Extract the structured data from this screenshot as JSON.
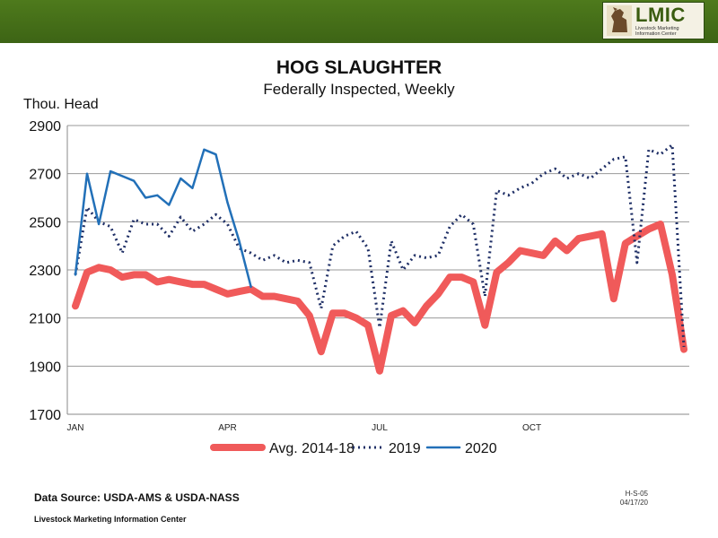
{
  "header": {
    "logo_title": "LMIC",
    "logo_subtitle": "Livestock Marketing Information Center",
    "brand_color": "#4a7419"
  },
  "chart_data": {
    "type": "line",
    "title": "HOG SLAUGHTER",
    "subtitle": "Federally Inspected, Weekly",
    "ylabel": "Thou. Head",
    "xlabel": "",
    "ylim": [
      1700,
      2900
    ],
    "yticks": [
      1700,
      1900,
      2100,
      2300,
      2500,
      2700,
      2900
    ],
    "grid": true,
    "x_week_range": [
      1,
      53
    ],
    "xticks": [
      {
        "label": "JAN",
        "week": 1
      },
      {
        "label": "APR",
        "week": 14
      },
      {
        "label": "JUL",
        "week": 27
      },
      {
        "label": "OCT",
        "week": 40
      }
    ],
    "legend_position": "bottom",
    "series": [
      {
        "name": "Avg. 2014-18",
        "color": "#f05a5a",
        "style": "thick",
        "values": [
          2150,
          2290,
          2310,
          2300,
          2270,
          2280,
          2280,
          2250,
          2260,
          2250,
          2240,
          2240,
          2220,
          2200,
          2210,
          2220,
          2190,
          2190,
          2180,
          2170,
          2110,
          1960,
          2120,
          2120,
          2100,
          2070,
          1880,
          2110,
          2130,
          2080,
          2150,
          2200,
          2270,
          2270,
          2250,
          2070,
          2290,
          2330,
          2380,
          2370,
          2360,
          2420,
          2380,
          2430,
          2440,
          2450,
          2180,
          2410,
          2440,
          2470,
          2490,
          2280,
          1970
        ]
      },
      {
        "name": "2019",
        "color": "#1f2f66",
        "style": "dotted",
        "values": [
          2280,
          2560,
          2500,
          2480,
          2370,
          2510,
          2490,
          2490,
          2440,
          2520,
          2460,
          2490,
          2530,
          2490,
          2390,
          2370,
          2340,
          2360,
          2330,
          2340,
          2330,
          2140,
          2400,
          2440,
          2460,
          2390,
          2060,
          2420,
          2300,
          2360,
          2350,
          2360,
          2480,
          2530,
          2490,
          2190,
          2630,
          2610,
          2640,
          2660,
          2700,
          2720,
          2680,
          2700,
          2680,
          2720,
          2760,
          2770,
          2330,
          2800,
          2780,
          2820,
          1980
        ]
      },
      {
        "name": "2020",
        "color": "#2270b8",
        "style": "solid",
        "values": [
          2280,
          2700,
          2490,
          2710,
          2690,
          2670,
          2600,
          2610,
          2570,
          2680,
          2640,
          2800,
          2780,
          2580,
          2420,
          2230
        ]
      }
    ]
  },
  "footer": {
    "source": "Data Source:  USDA-AMS & USDA-NASS",
    "org": "Livestock Marketing Information Center",
    "code": "H-S-05",
    "date": "04/17/20"
  }
}
